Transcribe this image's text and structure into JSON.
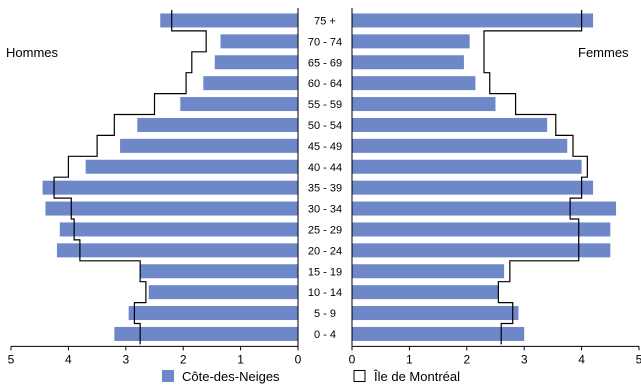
{
  "chart_data": {
    "type": "bar",
    "subtype": "population-pyramid",
    "title": "",
    "left_label": "Hommes",
    "right_label": "Femmes",
    "categories": [
      "75 +",
      "70 - 74",
      "65 - 69",
      "60 - 64",
      "55 - 59",
      "50 - 54",
      "45 - 49",
      "40 - 44",
      "35 - 39",
      "30 - 34",
      "25 - 29",
      "20 - 24",
      "15 - 19",
      "10 - 14",
      "5 - 9",
      "0 - 4"
    ],
    "xlim": [
      0,
      5
    ],
    "xticks": [
      0,
      1,
      2,
      3,
      4,
      5
    ],
    "grid": false,
    "legend_position": "bottom",
    "series": [
      {
        "name": "Côte-des-Neiges",
        "style": "bar",
        "color": "#6d87c9",
        "hommes": [
          2.4,
          1.35,
          1.45,
          1.65,
          2.05,
          2.8,
          3.1,
          3.7,
          4.45,
          4.4,
          4.15,
          4.2,
          2.75,
          2.6,
          2.95,
          3.2
        ],
        "femmes": [
          4.2,
          2.05,
          1.95,
          2.15,
          2.5,
          3.4,
          3.75,
          4.0,
          4.2,
          4.6,
          4.5,
          4.5,
          2.65,
          2.55,
          2.9,
          3.0
        ]
      },
      {
        "name": "Île de Montréal",
        "style": "outline",
        "color": "#000000",
        "hommes": [
          2.2,
          1.6,
          1.85,
          1.95,
          2.5,
          3.2,
          3.5,
          4.0,
          4.25,
          3.95,
          3.9,
          3.8,
          2.75,
          2.65,
          2.85,
          2.75
        ],
        "femmes": [
          4.0,
          2.3,
          2.3,
          2.4,
          2.85,
          3.55,
          3.85,
          4.1,
          4.0,
          3.8,
          3.95,
          3.95,
          2.75,
          2.55,
          2.8,
          2.6
        ]
      }
    ]
  }
}
